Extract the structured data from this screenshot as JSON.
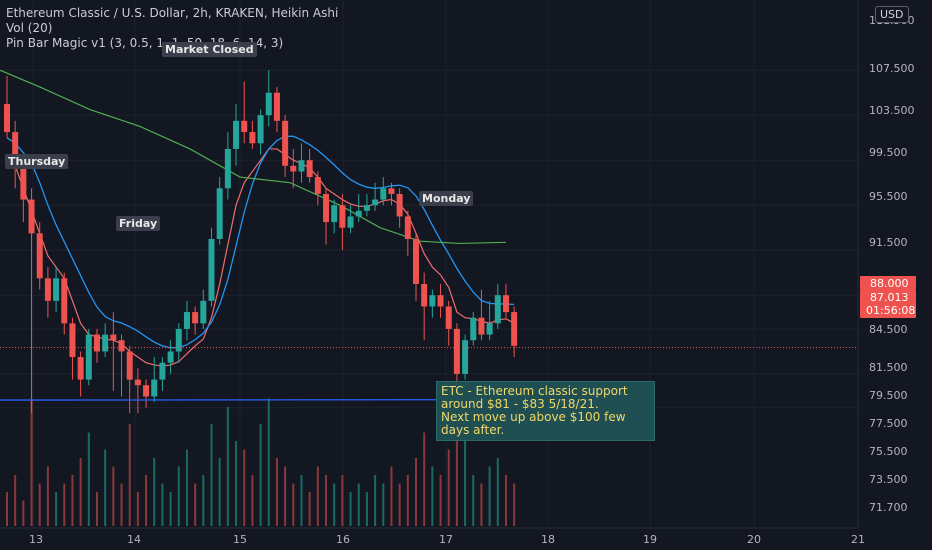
{
  "legend": {
    "line1": "Ethereum Classic / U.S. Dollar, 2h, KRAKEN, Heikin Ashi",
    "line2": "Vol (20)",
    "line3": "Pin Bar Magic v1 (3, 0.5, 1, 1, 50, 18, 6, 14, 3)"
  },
  "currency": "USD",
  "annotation": {
    "line1": "ETC - Ethereum classic support",
    "line2": "around $81 - $83 5/18/21.",
    "line3": "Next move up above $100 few",
    "line4": "days after."
  },
  "day_labels": {
    "thursday": "Thursday",
    "friday": "Friday",
    "closed": "Market Closed",
    "monday": "Monday"
  },
  "price_tags": {
    "upper": "88.000",
    "current": "87.013",
    "countdown": "01:56:08"
  },
  "chart_data": {
    "type": "candlestick",
    "ylim": [
      70.5,
      112.5
    ],
    "y_ticks": [
      "111.500",
      "107.500",
      "103.500",
      "99.500",
      "95.500",
      "91.500",
      "84.500",
      "81.500",
      "79.500",
      "77.500",
      "75.500",
      "73.500",
      "71.700"
    ],
    "x_ticks": [
      "13",
      "14",
      "15",
      "16",
      "17",
      "18",
      "19",
      "20",
      "21"
    ],
    "support_level": 82.0,
    "candles": [
      [
        108.5,
        106.0,
        111.0,
        105.5
      ],
      [
        106.0,
        103.0,
        107.0,
        101.0
      ],
      [
        103.0,
        100.0,
        104.0,
        98.0
      ],
      [
        100.0,
        97.0,
        101.0,
        81.0
      ],
      [
        97.0,
        93.0,
        98.0,
        92.0
      ],
      [
        93.0,
        91.0,
        94.0,
        89.5
      ],
      [
        91.0,
        93.0,
        94.0,
        90.0
      ],
      [
        93.0,
        89.0,
        93.5,
        88.0
      ],
      [
        89.0,
        86.0,
        89.5,
        84.0
      ],
      [
        86.0,
        84.0,
        86.5,
        82.5
      ],
      [
        84.0,
        88.0,
        88.5,
        83.5
      ],
      [
        88.0,
        86.5,
        88.5,
        85.5
      ],
      [
        86.5,
        88.0,
        89.0,
        86.0
      ],
      [
        88.0,
        87.5,
        90.0,
        83.0
      ],
      [
        87.5,
        86.5,
        88.0,
        82.5
      ],
      [
        86.5,
        84.0,
        87.0,
        81.0
      ],
      [
        84.0,
        83.5,
        85.0,
        81.0
      ],
      [
        83.5,
        82.5,
        84.0,
        81.5
      ],
      [
        82.5,
        84.0,
        86.0,
        82.0
      ],
      [
        84.0,
        85.5,
        86.0,
        83.0
      ],
      [
        85.5,
        86.5,
        87.5,
        84.5
      ],
      [
        86.5,
        88.5,
        89.0,
        85.5
      ],
      [
        88.5,
        90.0,
        91.0,
        87.5
      ],
      [
        90.0,
        89.0,
        90.5,
        88.0
      ],
      [
        89.0,
        91.0,
        92.0,
        88.5
      ],
      [
        91.0,
        96.5,
        97.5,
        90.5
      ],
      [
        96.5,
        101.0,
        102.0,
        96.0
      ],
      [
        101.0,
        104.5,
        106.0,
        100.0
      ],
      [
        104.5,
        107.0,
        108.5,
        103.0
      ],
      [
        107.0,
        106.0,
        110.5,
        105.0
      ],
      [
        106.0,
        105.0,
        107.0,
        104.5
      ],
      [
        105.0,
        107.5,
        108.0,
        104.0
      ],
      [
        107.5,
        109.5,
        111.5,
        106.5
      ],
      [
        109.5,
        107.0,
        110.0,
        106.0
      ],
      [
        107.0,
        103.0,
        107.5,
        102.0
      ],
      [
        103.0,
        102.5,
        104.5,
        101.0
      ],
      [
        102.5,
        103.5,
        105.0,
        101.5
      ],
      [
        103.5,
        102.0,
        104.5,
        101.5
      ],
      [
        102.0,
        100.5,
        102.5,
        99.5
      ],
      [
        100.5,
        98.0,
        101.0,
        96.0
      ],
      [
        98.0,
        99.5,
        100.0,
        97.0
      ],
      [
        99.5,
        97.5,
        100.5,
        95.5
      ],
      [
        97.5,
        98.5,
        99.5,
        97.0
      ],
      [
        98.5,
        99.0,
        100.5,
        98.0
      ],
      [
        99.0,
        99.5,
        100.5,
        98.5
      ],
      [
        99.5,
        100.0,
        101.5,
        99.0
      ],
      [
        100.0,
        101.0,
        102.0,
        99.5
      ],
      [
        101.0,
        100.5,
        101.5,
        99.5
      ],
      [
        100.5,
        98.5,
        101.0,
        97.5
      ],
      [
        98.5,
        96.5,
        99.0,
        95.0
      ],
      [
        96.5,
        92.5,
        97.0,
        91.0
      ],
      [
        92.5,
        90.5,
        93.5,
        87.5
      ],
      [
        90.5,
        91.5,
        92.0,
        89.5
      ],
      [
        91.5,
        90.5,
        92.5,
        89.5
      ],
      [
        90.5,
        88.5,
        91.0,
        87.0
      ],
      [
        88.5,
        84.5,
        89.0,
        81.5
      ],
      [
        84.5,
        87.5,
        88.0,
        84.0
      ],
      [
        87.5,
        89.5,
        90.0,
        87.0
      ],
      [
        89.5,
        88.0,
        92.0,
        87.5
      ],
      [
        88.0,
        89.0,
        91.0,
        87.5
      ],
      [
        89.0,
        91.5,
        92.5,
        88.5
      ],
      [
        91.5,
        90.0,
        92.5,
        89.5
      ],
      [
        90.0,
        87.0,
        90.5,
        86.0
      ]
    ],
    "volume": [
      4,
      6,
      3,
      15,
      5,
      7,
      4,
      5,
      6,
      8,
      11,
      4,
      9,
      7,
      5,
      12,
      4,
      6,
      8,
      5,
      4,
      7,
      9,
      5,
      6,
      12,
      8,
      14,
      10,
      9,
      6,
      12,
      15,
      8,
      7,
      5,
      6,
      4,
      7,
      6,
      5,
      6,
      4,
      5,
      4,
      6,
      5,
      7,
      5,
      6,
      8,
      11,
      7,
      6,
      9,
      12,
      10,
      6,
      5,
      7,
      8,
      6,
      5
    ],
    "ma_fast": [
      104,
      103,
      101,
      99,
      97,
      95,
      94,
      93,
      91,
      89,
      88,
      87.8,
      87.6,
      87.5,
      87.2,
      86.5,
      86,
      85.5,
      85.3,
      85.2,
      85.3,
      85.6,
      86.3,
      87,
      87.6,
      89.5,
      92.5,
      96,
      99.5,
      101.5,
      102.5,
      103.5,
      104.5,
      104.5,
      104,
      103.5,
      103.2,
      102.8,
      102,
      101,
      100.5,
      100,
      99.6,
      99.4,
      99.4,
      99.6,
      99.9,
      100,
      99.6,
      98.7,
      97,
      95.2,
      94,
      93.3,
      92.2,
      90,
      89.5,
      89.4,
      89.2,
      89,
      89.3,
      89.4,
      89
    ]
  }
}
